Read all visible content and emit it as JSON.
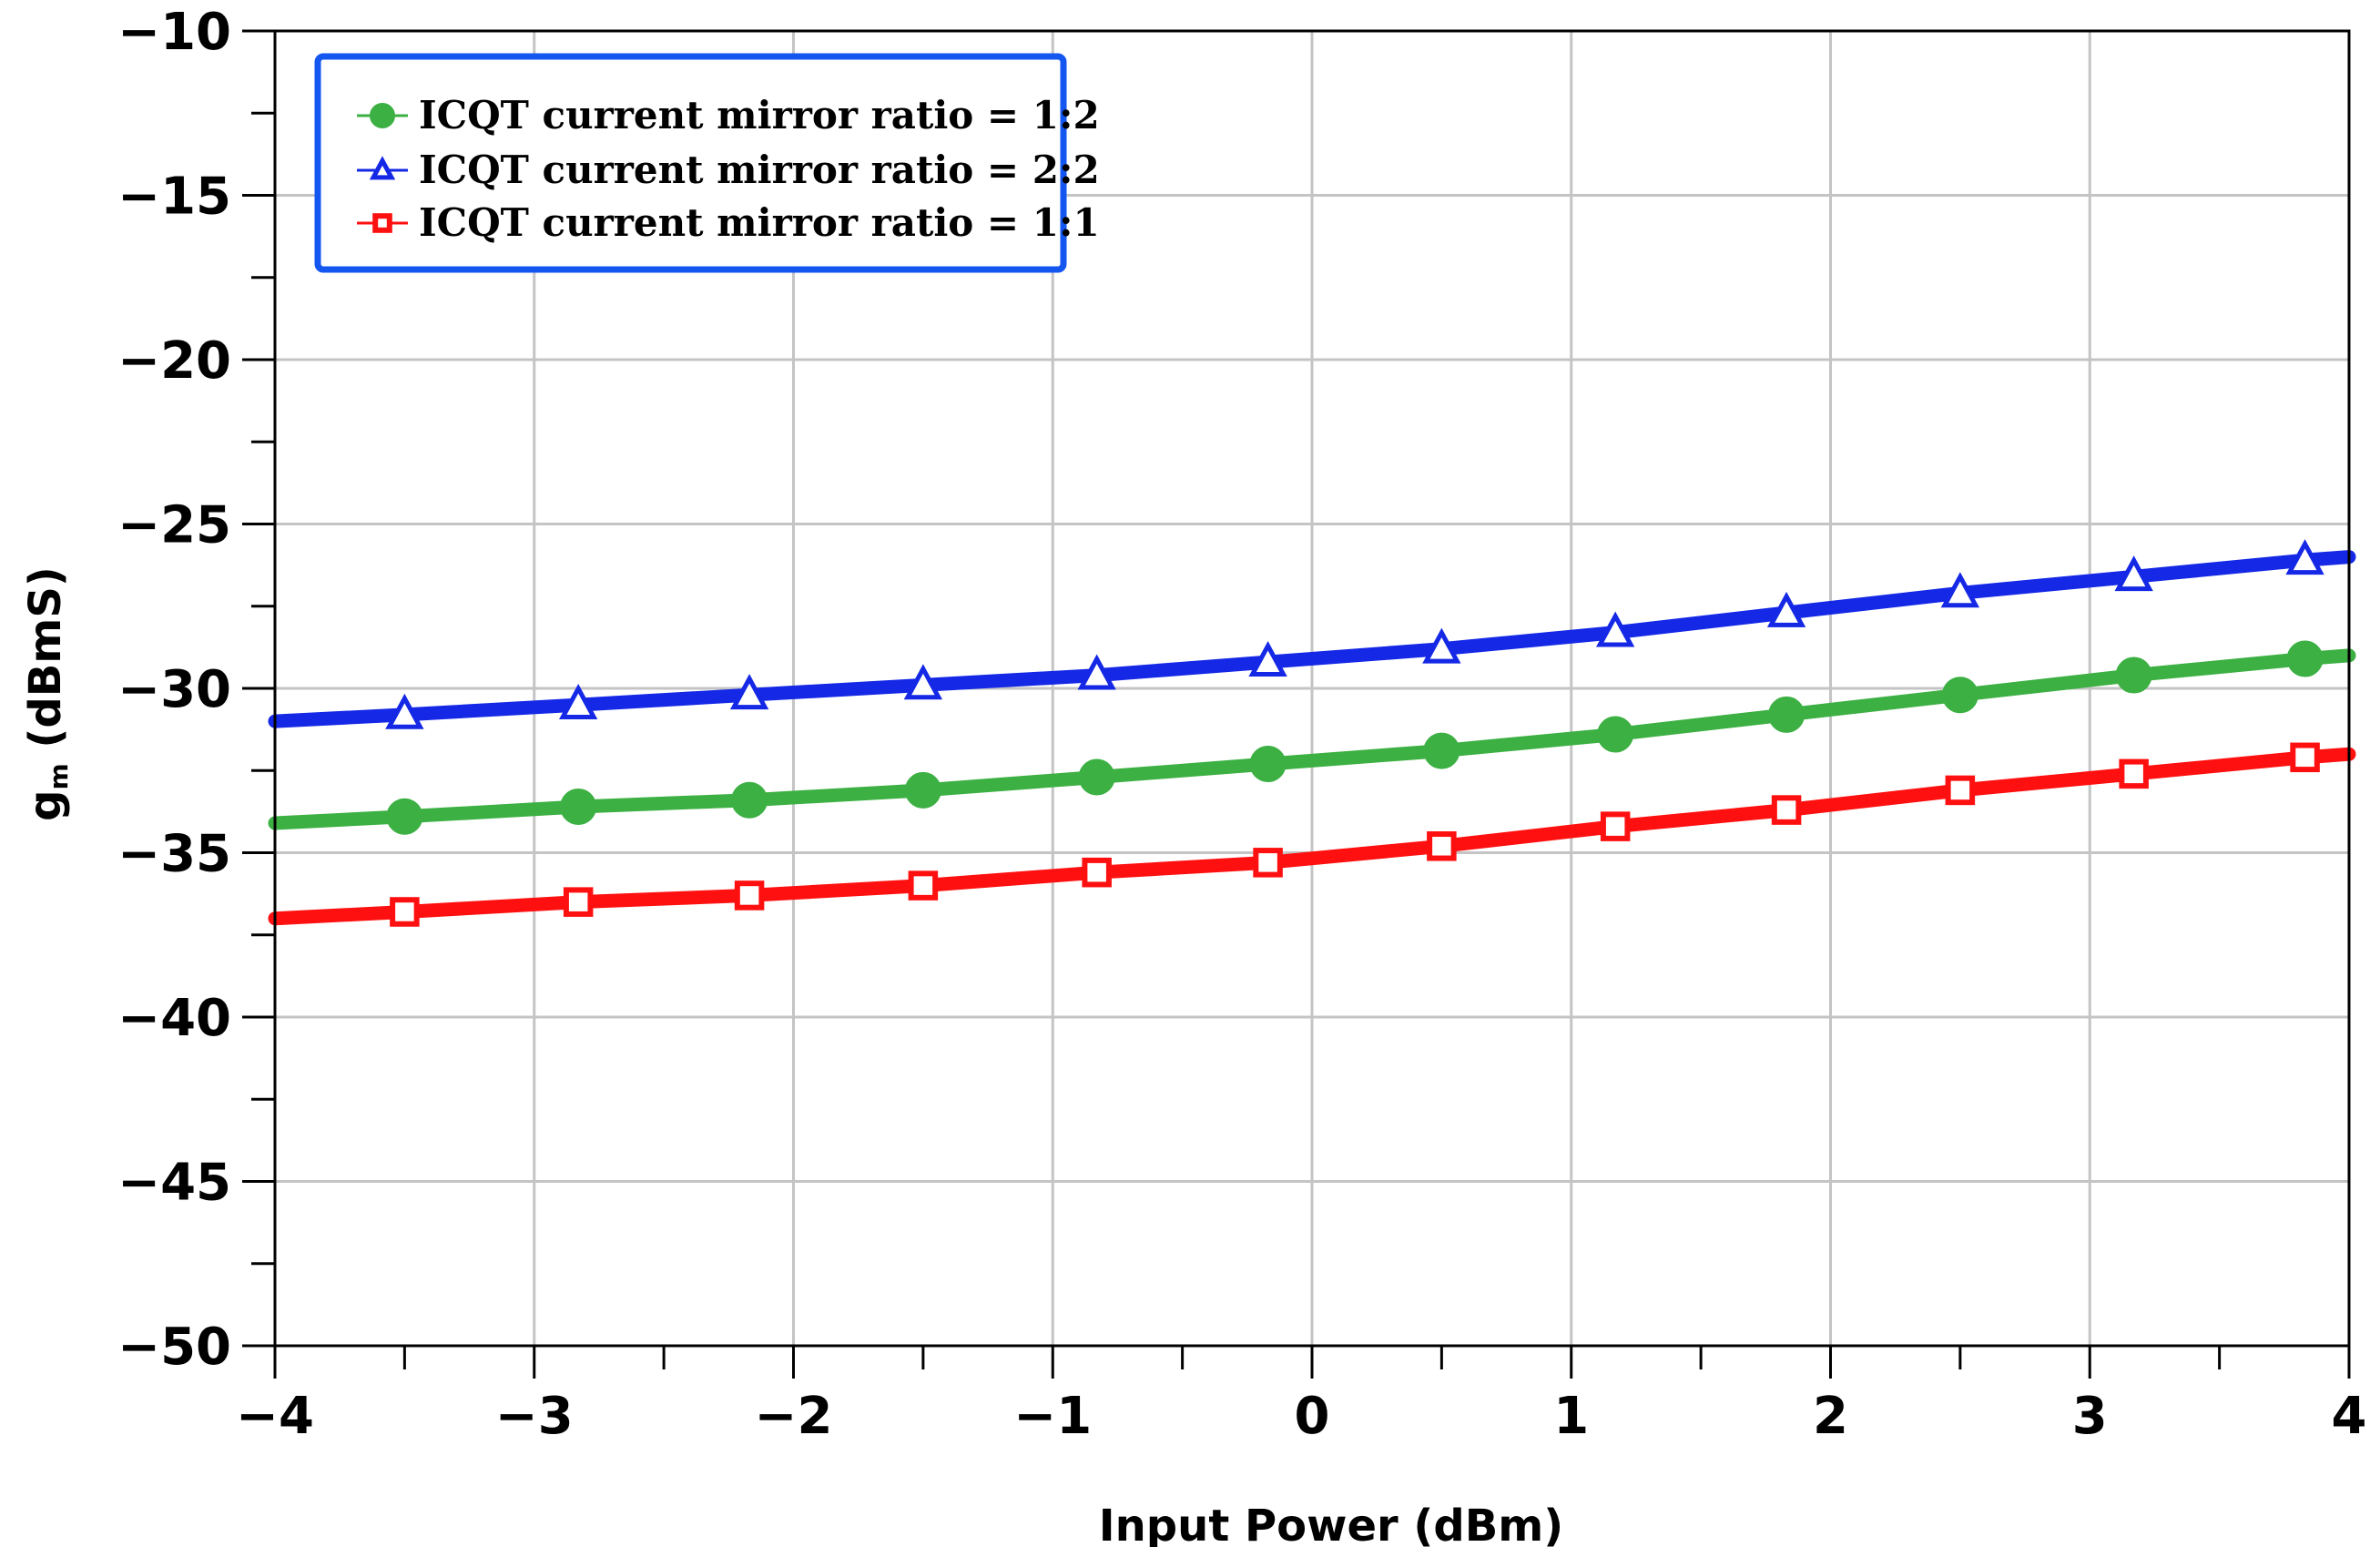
{
  "chart_data": {
    "type": "line",
    "title": "",
    "xlabel": "Input Power (dBm)",
    "ylabel_main": "g",
    "ylabel_sub": "m",
    "ylabel_rest": " (dBmS)",
    "xlim": [
      -4,
      4
    ],
    "ylim": [
      -50,
      -10
    ],
    "x_ticks": [
      -4,
      -3,
      -2,
      -1,
      0,
      1,
      2,
      3,
      4
    ],
    "x_tick_labels": [
      "−4",
      "−3",
      "−2",
      "−1",
      "0",
      "1",
      "2",
      "3",
      "4"
    ],
    "y_ticks": [
      -50,
      -45,
      -40,
      -35,
      -30,
      -25,
      -20,
      -15,
      -10
    ],
    "y_tick_labels": [
      "−50",
      "−45",
      "−40",
      "−35",
      "−30",
      "−25",
      "−20",
      "−15",
      "−10"
    ],
    "grid": true,
    "legend_position": "top-left",
    "series": [
      {
        "name": "ICQT current mirror ratio = 1:2",
        "color": "#3CB043",
        "marker": "circle",
        "x": [
          -4,
          -3.5,
          -2.83,
          -2.17,
          -1.5,
          -0.83,
          -0.17,
          0.5,
          1.17,
          1.83,
          2.5,
          3.17,
          3.83,
          4
        ],
        "y": [
          -34.1,
          -33.9,
          -33.6,
          -33.4,
          -33.1,
          -32.7,
          -32.3,
          -31.9,
          -31.4,
          -30.8,
          -30.2,
          -29.6,
          -29.1,
          -29.0
        ]
      },
      {
        "name": "ICQT current mirror ratio = 2:2",
        "color": "#1428E6",
        "marker": "triangle",
        "x": [
          -4,
          -3.5,
          -2.83,
          -2.17,
          -1.5,
          -0.83,
          -0.17,
          0.5,
          1.17,
          1.83,
          2.5,
          3.17,
          3.83,
          4
        ],
        "y": [
          -31.0,
          -30.8,
          -30.5,
          -30.2,
          -29.9,
          -29.6,
          -29.2,
          -28.8,
          -28.3,
          -27.7,
          -27.1,
          -26.6,
          -26.1,
          -26.0
        ]
      },
      {
        "name": "ICQT current mirror ratio = 1:1",
        "color": "#FF1010",
        "marker": "square",
        "x": [
          -4,
          -3.5,
          -2.83,
          -2.17,
          -1.5,
          -0.83,
          -0.17,
          0.5,
          1.17,
          1.83,
          2.5,
          3.17,
          3.83,
          4
        ],
        "y": [
          -37.0,
          -36.8,
          -36.5,
          -36.3,
          -36.0,
          -35.6,
          -35.3,
          -34.8,
          -34.2,
          -33.7,
          -33.1,
          -32.6,
          -32.1,
          -32.0
        ]
      }
    ],
    "legend_order": [
      0,
      1,
      2
    ],
    "legend_border_color": "#1456F0"
  }
}
